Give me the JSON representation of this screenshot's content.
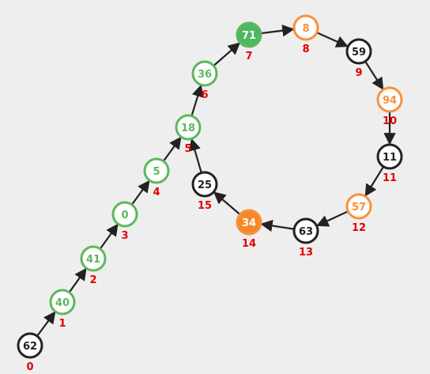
{
  "colors": {
    "background": "#eeeeee",
    "default_stroke": "#222222",
    "default_fill": "#ffffff",
    "green": "#5cb85c",
    "green_fill_active": "#4cb863",
    "orange": "#f7913b",
    "orange_fill_active": "#f7862b",
    "index_color": "#e00000",
    "edge_color": "#222222"
  },
  "nodes": [
    {
      "index": "0",
      "value": "62",
      "style": "default"
    },
    {
      "index": "1",
      "value": "40",
      "style": "green"
    },
    {
      "index": "2",
      "value": "41",
      "style": "green"
    },
    {
      "index": "3",
      "value": "0",
      "style": "green"
    },
    {
      "index": "4",
      "value": "5",
      "style": "green"
    },
    {
      "index": "5",
      "value": "18",
      "style": "green"
    },
    {
      "index": "6",
      "value": "36",
      "style": "green"
    },
    {
      "index": "7",
      "value": "71",
      "style": "green-filled"
    },
    {
      "index": "8",
      "value": "8",
      "style": "orange"
    },
    {
      "index": "9",
      "value": "59",
      "style": "default"
    },
    {
      "index": "10",
      "value": "94",
      "style": "orange"
    },
    {
      "index": "11",
      "value": "11",
      "style": "default"
    },
    {
      "index": "12",
      "value": "57",
      "style": "orange"
    },
    {
      "index": "13",
      "value": "63",
      "style": "default"
    },
    {
      "index": "14",
      "value": "34",
      "style": "orange-filled"
    },
    {
      "index": "15",
      "value": "25",
      "style": "default"
    }
  ],
  "edges": [
    [
      0,
      1
    ],
    [
      1,
      2
    ],
    [
      2,
      3
    ],
    [
      3,
      4
    ],
    [
      4,
      5
    ],
    [
      5,
      6
    ],
    [
      6,
      7
    ],
    [
      7,
      8
    ],
    [
      8,
      9
    ],
    [
      9,
      10
    ],
    [
      10,
      11
    ],
    [
      11,
      12
    ],
    [
      12,
      13
    ],
    [
      13,
      14
    ],
    [
      14,
      15
    ],
    [
      15,
      5
    ]
  ]
}
